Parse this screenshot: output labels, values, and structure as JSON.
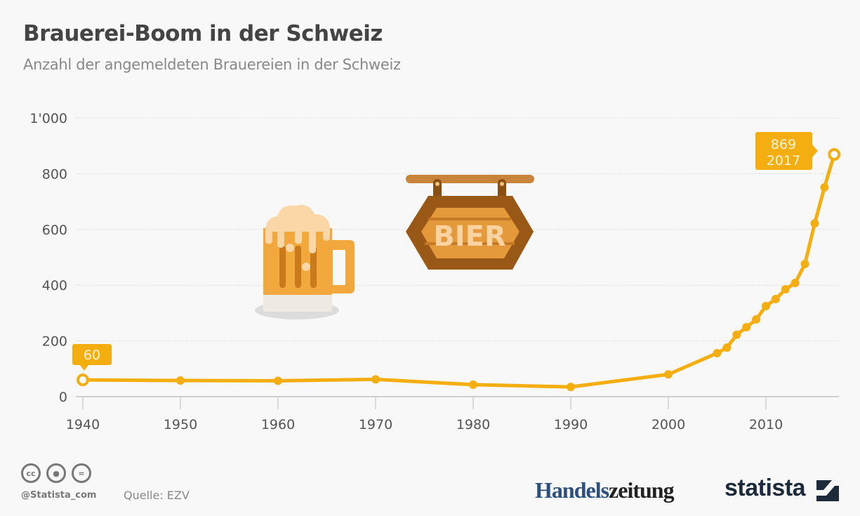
{
  "header": {
    "title": "Brauerei-Boom in der Schweiz",
    "subtitle": "Anzahl der angemeldeten Brauereien in der Schweiz"
  },
  "chart_data": {
    "type": "line",
    "title": "Brauerei-Boom in der Schweiz",
    "subtitle": "Anzahl der angemeldeten Brauereien in der Schweiz",
    "xlabel": "",
    "ylabel": "",
    "x": [
      1940,
      1950,
      1960,
      1970,
      1980,
      1990,
      2000,
      2005,
      2006,
      2007,
      2008,
      2009,
      2010,
      2011,
      2012,
      2013,
      2014,
      2015,
      2016,
      2017
    ],
    "series": [
      {
        "name": "Brauereien",
        "values": [
          60,
          58,
          57,
          62,
          43,
          35,
          80,
          156,
          176,
          222,
          249,
          277,
          325,
          350,
          385,
          408,
          476,
          622,
          751,
          869
        ]
      }
    ],
    "ylim": [
      0,
      1000
    ],
    "y_ticks": [
      "0",
      "200",
      "400",
      "600",
      "800",
      "1'000"
    ],
    "x_ticks": [
      "1940",
      "1950",
      "1960",
      "1970",
      "1980",
      "1990",
      "2000",
      "2010"
    ],
    "grid": true,
    "annotations": [
      {
        "x": 1940,
        "label": "60"
      },
      {
        "x": 2017,
        "label": "869",
        "sublabel": "2017"
      }
    ],
    "color": "#f5ae0f"
  },
  "annotations": {
    "first_value": "60",
    "last_value": "869",
    "last_year": "2017"
  },
  "illustration": {
    "sign_text": "BIER"
  },
  "footer": {
    "handle": "@Statista_com",
    "source": "Quelle: EZV",
    "partner_a": "Handels",
    "partner_b": "zeitung",
    "brand": "statista",
    "cc_icons": [
      "cc-icon",
      "attribution-icon",
      "no-derivatives-icon"
    ]
  }
}
